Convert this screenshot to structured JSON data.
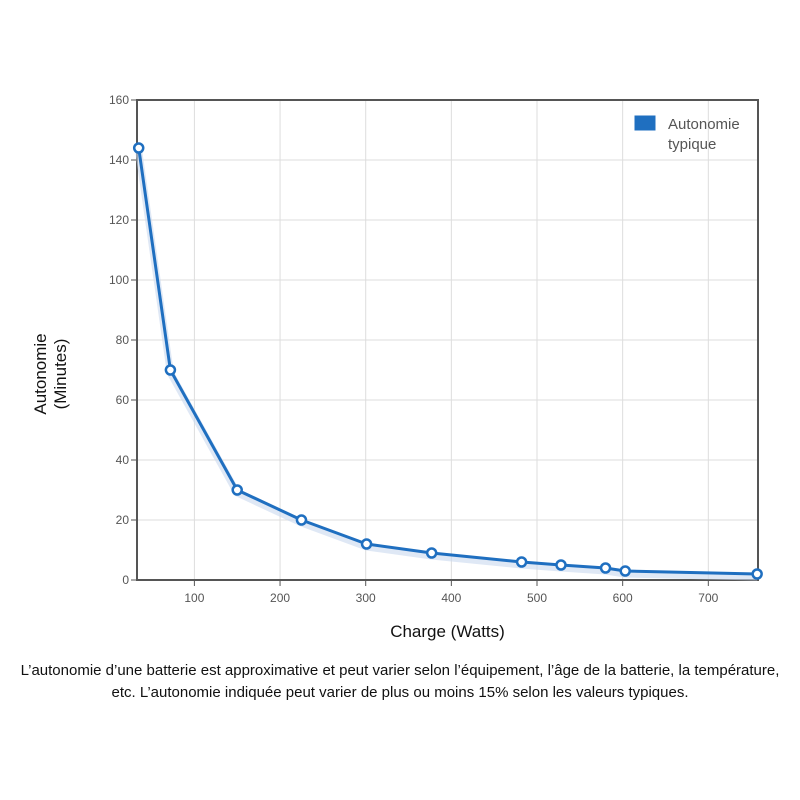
{
  "chart_data": {
    "type": "line",
    "xlabel": "Charge (Watts)",
    "ylabel_lines": [
      "Autonomie",
      "(Minutes)"
    ],
    "xlim": [
      33,
      758
    ],
    "ylim": [
      0,
      160
    ],
    "x_ticks": [
      100,
      200,
      300,
      400,
      500,
      600,
      700
    ],
    "y_ticks": [
      0,
      20,
      40,
      60,
      80,
      100,
      120,
      140,
      160
    ],
    "grid": true,
    "legend_position": "top-right",
    "series": [
      {
        "name": "Autonomie typique",
        "name_lines": [
          "Autonomie",
          "typique"
        ],
        "color": "#1f6fc0",
        "x": [
          35,
          72,
          150,
          225,
          301,
          377,
          482,
          528,
          580,
          603,
          757
        ],
        "y": [
          144,
          70,
          30,
          20,
          12,
          9,
          6,
          5,
          4,
          3,
          2
        ]
      }
    ]
  },
  "caption": "L’autonomie d’une batterie est approximative et peut varier selon l’équipement, l’âge de la batterie, la température, etc. L’autonomie indiquée peut varier de plus ou moins 15% selon les valeurs typiques."
}
